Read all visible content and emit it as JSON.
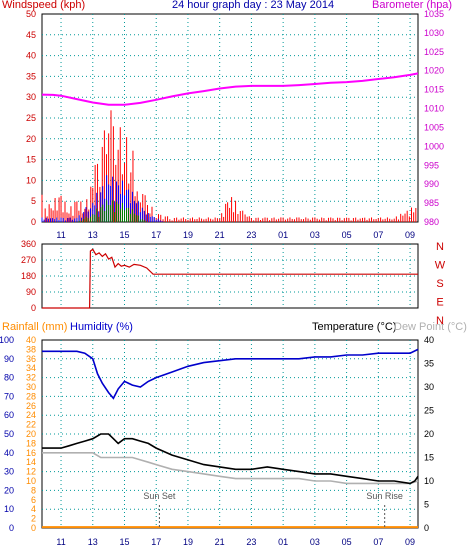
{
  "colors": {
    "wind_speed": "#ff0000",
    "wind_avg": "#0000ff",
    "wind_low": "#008000",
    "barometer": "#ff00ff",
    "direction": "#cc0000",
    "rainfall": "#ff8c00",
    "humidity": "#0000cc",
    "temperature": "#000000",
    "dew_point": "#b0b0b0",
    "sun_marker": "#555555",
    "grid": "#009999",
    "left_axis_rain": "#ff8c00",
    "axis_red": "#cc0000",
    "axis_blue": "#0000aa",
    "axis_magenta": "#cc00cc"
  },
  "time_ticks": [
    "11",
    "13",
    "15",
    "17",
    "19",
    "21",
    "23",
    "01",
    "03",
    "05",
    "07",
    "09"
  ],
  "top": {
    "labels": {
      "left": "Windspeed (kph)",
      "center": "24 hour graph day : 23 May 2014",
      "right": "Barometer (hpa)"
    }
  },
  "bottom": {
    "labels": {
      "rainfall": "Rainfall (mm)",
      "humidity": "Humidity (%)",
      "temperature": "Temperature (°C)",
      "dew_point": "Dew Point (°C)"
    },
    "annotations": {
      "sun_set": "Sun Set",
      "sun_rise": "Sun Rise"
    }
  },
  "chart_data": [
    {
      "type": "line",
      "title": "24 hour graph day : 23 May 2014",
      "x_ticks": [
        "11",
        "13",
        "15",
        "17",
        "19",
        "21",
        "23",
        "01",
        "03",
        "05",
        "07",
        "09"
      ],
      "ylabel_left": "Windspeed (kph)",
      "ylabel_right": "Barometer (hpa)",
      "ylim_left": [
        0,
        50
      ],
      "ylim_right": [
        980,
        1035
      ],
      "yticks_left": [
        0,
        5,
        10,
        15,
        20,
        25,
        30,
        35,
        40,
        45,
        50
      ],
      "yticks_right": [
        980,
        985,
        990,
        995,
        1000,
        1005,
        1010,
        1015,
        1020,
        1025,
        1030,
        1035
      ],
      "grid": true,
      "series": [
        {
          "name": "Windspeed (kph)",
          "axis": "left",
          "x": [
            9.8,
            10,
            10.5,
            11,
            11.5,
            12,
            12.5,
            13,
            13.3,
            13.6,
            14,
            14.3,
            14.6,
            15,
            15.4,
            15.8,
            16,
            16.3,
            16.6,
            17,
            18,
            19,
            20,
            21,
            21.5,
            22,
            22.3,
            22.6,
            23,
            24,
            25,
            26,
            27,
            28,
            29,
            30,
            31,
            32,
            33.5
          ],
          "y": [
            6,
            3,
            5,
            6,
            3,
            5,
            4,
            9,
            16,
            21,
            26,
            24,
            23,
            20,
            18,
            12,
            8,
            6,
            4,
            2,
            1,
            1,
            1,
            1,
            5,
            6,
            3,
            2,
            1,
            1,
            1,
            1,
            1,
            1,
            1,
            1,
            1,
            1,
            4
          ]
        },
        {
          "name": "Average wind (kph)",
          "axis": "left",
          "x": [
            9.8,
            11,
            12,
            13,
            13.5,
            14,
            14.5,
            15,
            15.5,
            16,
            16.5,
            17,
            17.5
          ],
          "y": [
            1,
            1,
            1,
            5,
            8,
            11,
            10,
            9,
            7,
            4,
            2,
            1,
            0
          ]
        },
        {
          "name": "Low wind (kph)",
          "axis": "left",
          "x": [
            9.8,
            12,
            13,
            13.5,
            14,
            14.5,
            15,
            15.5,
            16,
            16.5
          ],
          "y": [
            0,
            0,
            2,
            4,
            5,
            5,
            4,
            3,
            1,
            0
          ]
        },
        {
          "name": "Barometer (hpa)",
          "axis": "right",
          "x": [
            9.8,
            10.5,
            11,
            12,
            13,
            14,
            15,
            16,
            17,
            18,
            19,
            20,
            21,
            22,
            23,
            24,
            25,
            26,
            27,
            28,
            29,
            30,
            31,
            32,
            33,
            33.5
          ],
          "y": [
            1013.7,
            1013.6,
            1013.4,
            1012.5,
            1011.6,
            1011.0,
            1011.0,
            1011.5,
            1012.3,
            1013.2,
            1014.0,
            1014.6,
            1015.3,
            1015.8,
            1016.0,
            1016.0,
            1016.0,
            1016.2,
            1016.5,
            1016.8,
            1017.0,
            1017.3,
            1017.8,
            1018.3,
            1018.9,
            1019.3
          ]
        }
      ]
    },
    {
      "type": "line",
      "x_ticks": [],
      "y_ticks": [
        "360",
        "270",
        "180",
        "90",
        "0"
      ],
      "direction_labels": [
        "N",
        "W",
        "S",
        "E",
        "N"
      ],
      "ylim": [
        0,
        360
      ],
      "grid": true,
      "series": [
        {
          "name": "Wind direction",
          "x": [
            9.8,
            12.8,
            12.85,
            13.0,
            13.2,
            13.4,
            13.6,
            13.8,
            14.0,
            14.2,
            14.4,
            14.6,
            14.8,
            15.0,
            15.3,
            15.6,
            16.0,
            16.4,
            16.8,
            18,
            20,
            25,
            30,
            33.5
          ],
          "y": [
            0,
            0,
            320,
            330,
            300,
            310,
            290,
            305,
            275,
            285,
            230,
            250,
            235,
            240,
            230,
            245,
            240,
            225,
            190,
            190,
            190,
            190,
            190,
            190
          ]
        }
      ]
    },
    {
      "type": "line",
      "x_ticks": [
        "11",
        "13",
        "15",
        "17",
        "19",
        "21",
        "23",
        "01",
        "03",
        "05",
        "07",
        "09"
      ],
      "ylabel_left_rain": "Rainfall (mm)",
      "ylabel_left_humidity": "Humidity (%)",
      "ylabel_right": "Temperature (°C)",
      "ylabel_right_2": "Dew Point (°C)",
      "ylim_rain": [
        0,
        40
      ],
      "ylim_humidity": [
        0,
        100
      ],
      "ylim_temp": [
        0,
        40
      ],
      "yticks_rain": [
        0,
        2,
        4,
        6,
        8,
        10,
        12,
        14,
        16,
        18,
        20,
        22,
        24,
        26,
        28,
        30,
        32,
        34,
        36,
        38,
        40
      ],
      "yticks_humidity": [
        0,
        10,
        20,
        30,
        40,
        50,
        60,
        70,
        80,
        90,
        100
      ],
      "yticks_temp": [
        0,
        5,
        10,
        15,
        20,
        25,
        30,
        35,
        40
      ],
      "grid": true,
      "annotations": [
        "Sun Set",
        "Sun Rise"
      ],
      "series": [
        {
          "name": "Humidity (%)",
          "axis": "humidity",
          "x": [
            9.8,
            10.5,
            11,
            11.5,
            12,
            12.5,
            13,
            13.3,
            13.6,
            14,
            14.3,
            14.6,
            15,
            15.5,
            16,
            16.5,
            17,
            18,
            19,
            20,
            21,
            22,
            23,
            24,
            25,
            26,
            27,
            28,
            29,
            30,
            31,
            32,
            33,
            33.5
          ],
          "y": [
            94,
            94,
            94,
            94,
            94,
            93,
            90,
            82,
            77,
            72,
            69,
            74,
            78,
            76,
            75,
            78,
            80,
            83,
            86,
            88,
            89,
            90,
            90,
            90,
            90,
            90,
            91,
            91,
            92,
            92,
            93,
            93,
            93,
            95
          ]
        },
        {
          "name": "Temperature (°C)",
          "axis": "temp",
          "x": [
            9.8,
            10.5,
            11,
            11.5,
            12,
            12.5,
            13,
            13.5,
            14,
            14.3,
            14.6,
            15,
            15.5,
            16,
            16.5,
            17,
            18,
            19,
            20,
            21,
            22,
            23,
            24,
            25,
            26,
            27,
            28,
            29,
            30,
            31,
            32,
            33,
            33.3,
            33.5
          ],
          "y": [
            17,
            17,
            17,
            17.5,
            18,
            18.5,
            19,
            20,
            20,
            19,
            18,
            19,
            19,
            18.5,
            18,
            17,
            15.5,
            14.5,
            13.5,
            13,
            12.5,
            12.5,
            13,
            12.5,
            12,
            11.5,
            11.5,
            11,
            10.5,
            10,
            10,
            9.5,
            10,
            11
          ]
        },
        {
          "name": "Dew Point (°C)",
          "axis": "temp",
          "x": [
            9.8,
            10.5,
            11,
            11.5,
            12,
            12.5,
            13,
            13.5,
            14,
            14.5,
            15,
            15.5,
            16,
            16.5,
            17,
            18,
            19,
            20,
            21,
            22,
            23,
            24,
            25,
            26,
            27,
            28,
            29,
            30,
            31,
            32,
            33,
            33.5
          ],
          "y": [
            16,
            16,
            16,
            16,
            16,
            16,
            16,
            15,
            15,
            15,
            15,
            15,
            14.5,
            14,
            13.5,
            12.5,
            12,
            11.5,
            11,
            10.5,
            10.5,
            10.5,
            10.5,
            10.5,
            10,
            10,
            9.5,
            9.5,
            9.5,
            9.5,
            9.5,
            10
          ]
        },
        {
          "name": "Rainfall (mm)",
          "axis": "rain",
          "x": [
            9.8,
            33.5
          ],
          "y": [
            0.2,
            0.2
          ]
        }
      ]
    }
  ]
}
